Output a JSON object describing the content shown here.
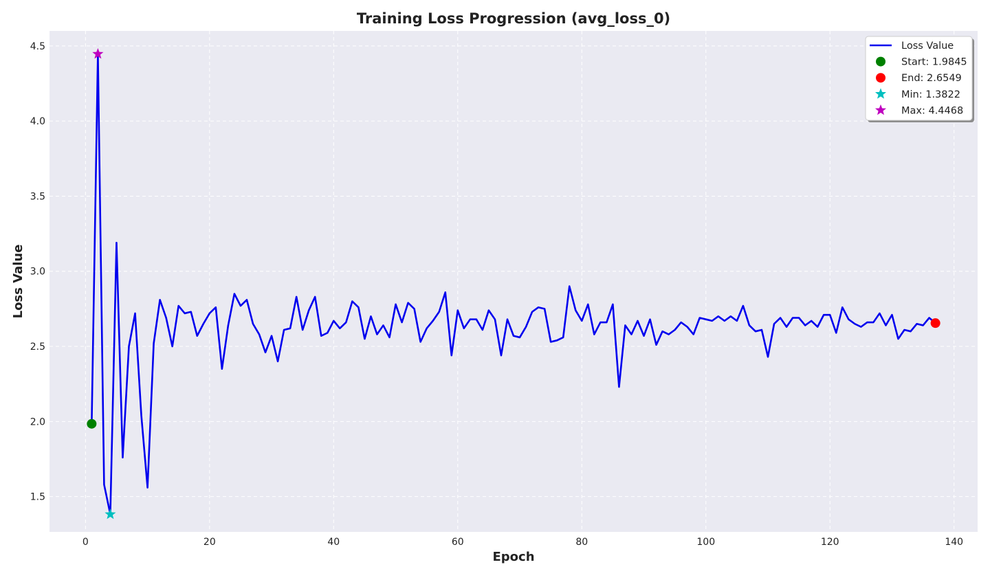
{
  "chart_data": {
    "type": "line",
    "title": "Training Loss Progression (avg_loss_0)",
    "xlabel": "Epoch",
    "ylabel": "Loss Value",
    "xlim": [
      -5.8,
      143.8
    ],
    "ylim": [
      1.265,
      4.6
    ],
    "xticks": [
      0,
      20,
      40,
      60,
      80,
      100,
      120,
      140
    ],
    "yticks": [
      1.5,
      2.0,
      2.5,
      3.0,
      3.5,
      4.0,
      4.5
    ],
    "xtick_labels": [
      "0",
      "20",
      "40",
      "60",
      "80",
      "100",
      "120",
      "140"
    ],
    "ytick_labels": [
      "1.5",
      "2.0",
      "2.5",
      "3.0",
      "3.5",
      "4.0",
      "4.5"
    ],
    "grid": true,
    "legend_position": "top-right",
    "colors": {
      "background": "#eaeaf2",
      "grid": "#ffffff",
      "line": "#0000ee",
      "start": "#008000",
      "end": "#ff0000",
      "min": "#00bfbf",
      "max": "#bf00bf"
    },
    "series": [
      {
        "name": "Loss Value",
        "x": [
          1,
          2,
          3,
          4,
          5,
          6,
          7,
          8,
          9,
          10,
          11,
          12,
          13,
          14,
          15,
          16,
          17,
          18,
          19,
          20,
          21,
          22,
          23,
          24,
          25,
          26,
          27,
          28,
          29,
          30,
          31,
          32,
          33,
          34,
          35,
          36,
          37,
          38,
          39,
          40,
          41,
          42,
          43,
          44,
          45,
          46,
          47,
          48,
          49,
          50,
          51,
          52,
          53,
          54,
          55,
          56,
          57,
          58,
          59,
          60,
          61,
          62,
          63,
          64,
          65,
          66,
          67,
          68,
          69,
          70,
          71,
          72,
          73,
          74,
          75,
          76,
          77,
          78,
          79,
          80,
          81,
          82,
          83,
          84,
          85,
          86,
          87,
          88,
          89,
          90,
          91,
          92,
          93,
          94,
          95,
          96,
          97,
          98,
          99,
          100,
          101,
          102,
          103,
          104,
          105,
          106,
          107,
          108,
          109,
          110,
          111,
          112,
          113,
          114,
          115,
          116,
          117,
          118,
          119,
          120,
          121,
          122,
          123,
          124,
          125,
          126,
          127,
          128,
          129,
          130,
          131,
          132,
          133,
          134,
          135,
          136,
          137
        ],
        "y": [
          1.9845,
          4.4468,
          1.58,
          1.3822,
          3.19,
          1.76,
          2.5,
          2.72,
          2.04,
          1.56,
          2.52,
          2.81,
          2.69,
          2.5,
          2.77,
          2.72,
          2.73,
          2.57,
          2.65,
          2.72,
          2.76,
          2.35,
          2.64,
          2.85,
          2.77,
          2.81,
          2.65,
          2.58,
          2.46,
          2.57,
          2.4,
          2.61,
          2.62,
          2.83,
          2.61,
          2.74,
          2.83,
          2.57,
          2.59,
          2.67,
          2.62,
          2.66,
          2.8,
          2.76,
          2.55,
          2.7,
          2.58,
          2.64,
          2.56,
          2.78,
          2.66,
          2.79,
          2.75,
          2.53,
          2.62,
          2.67,
          2.73,
          2.86,
          2.44,
          2.74,
          2.62,
          2.68,
          2.68,
          2.61,
          2.74,
          2.68,
          2.44,
          2.68,
          2.57,
          2.56,
          2.63,
          2.73,
          2.76,
          2.75,
          2.53,
          2.54,
          2.56,
          2.9,
          2.74,
          2.67,
          2.78,
          2.58,
          2.66,
          2.66,
          2.78,
          2.23,
          2.64,
          2.58,
          2.67,
          2.57,
          2.68,
          2.51,
          2.6,
          2.58,
          2.61,
          2.66,
          2.63,
          2.58,
          2.69,
          2.68,
          2.67,
          2.7,
          2.67,
          2.7,
          2.67,
          2.77,
          2.64,
          2.6,
          2.61,
          2.43,
          2.65,
          2.69,
          2.63,
          2.69,
          2.69,
          2.64,
          2.67,
          2.63,
          2.71,
          2.71,
          2.59,
          2.76,
          2.68,
          2.65,
          2.63,
          2.66,
          2.66,
          2.72,
          2.64,
          2.71,
          2.55,
          2.61,
          2.6,
          2.65,
          2.64,
          2.69,
          2.6549
        ]
      }
    ],
    "markers": [
      {
        "name": "Start: 1.9845",
        "x": 1,
        "y": 1.9845,
        "shape": "circle",
        "color": "#008000"
      },
      {
        "name": "End: 2.6549",
        "x": 137,
        "y": 2.6549,
        "shape": "circle",
        "color": "#ff0000"
      },
      {
        "name": "Min: 1.3822",
        "x": 4,
        "y": 1.3822,
        "shape": "star",
        "color": "#00bfbf"
      },
      {
        "name": "Max: 4.4468",
        "x": 2,
        "y": 4.4468,
        "shape": "star",
        "color": "#bf00bf"
      }
    ],
    "legend": [
      {
        "label": "Loss Value",
        "kind": "line",
        "color": "#0000ee"
      },
      {
        "label": "Start: 1.9845",
        "kind": "circle",
        "color": "#008000"
      },
      {
        "label": "End: 2.6549",
        "kind": "circle",
        "color": "#ff0000"
      },
      {
        "label": "Min: 1.3822",
        "kind": "star",
        "color": "#00bfbf"
      },
      {
        "label": "Max: 4.4468",
        "kind": "star",
        "color": "#bf00bf"
      }
    ]
  }
}
